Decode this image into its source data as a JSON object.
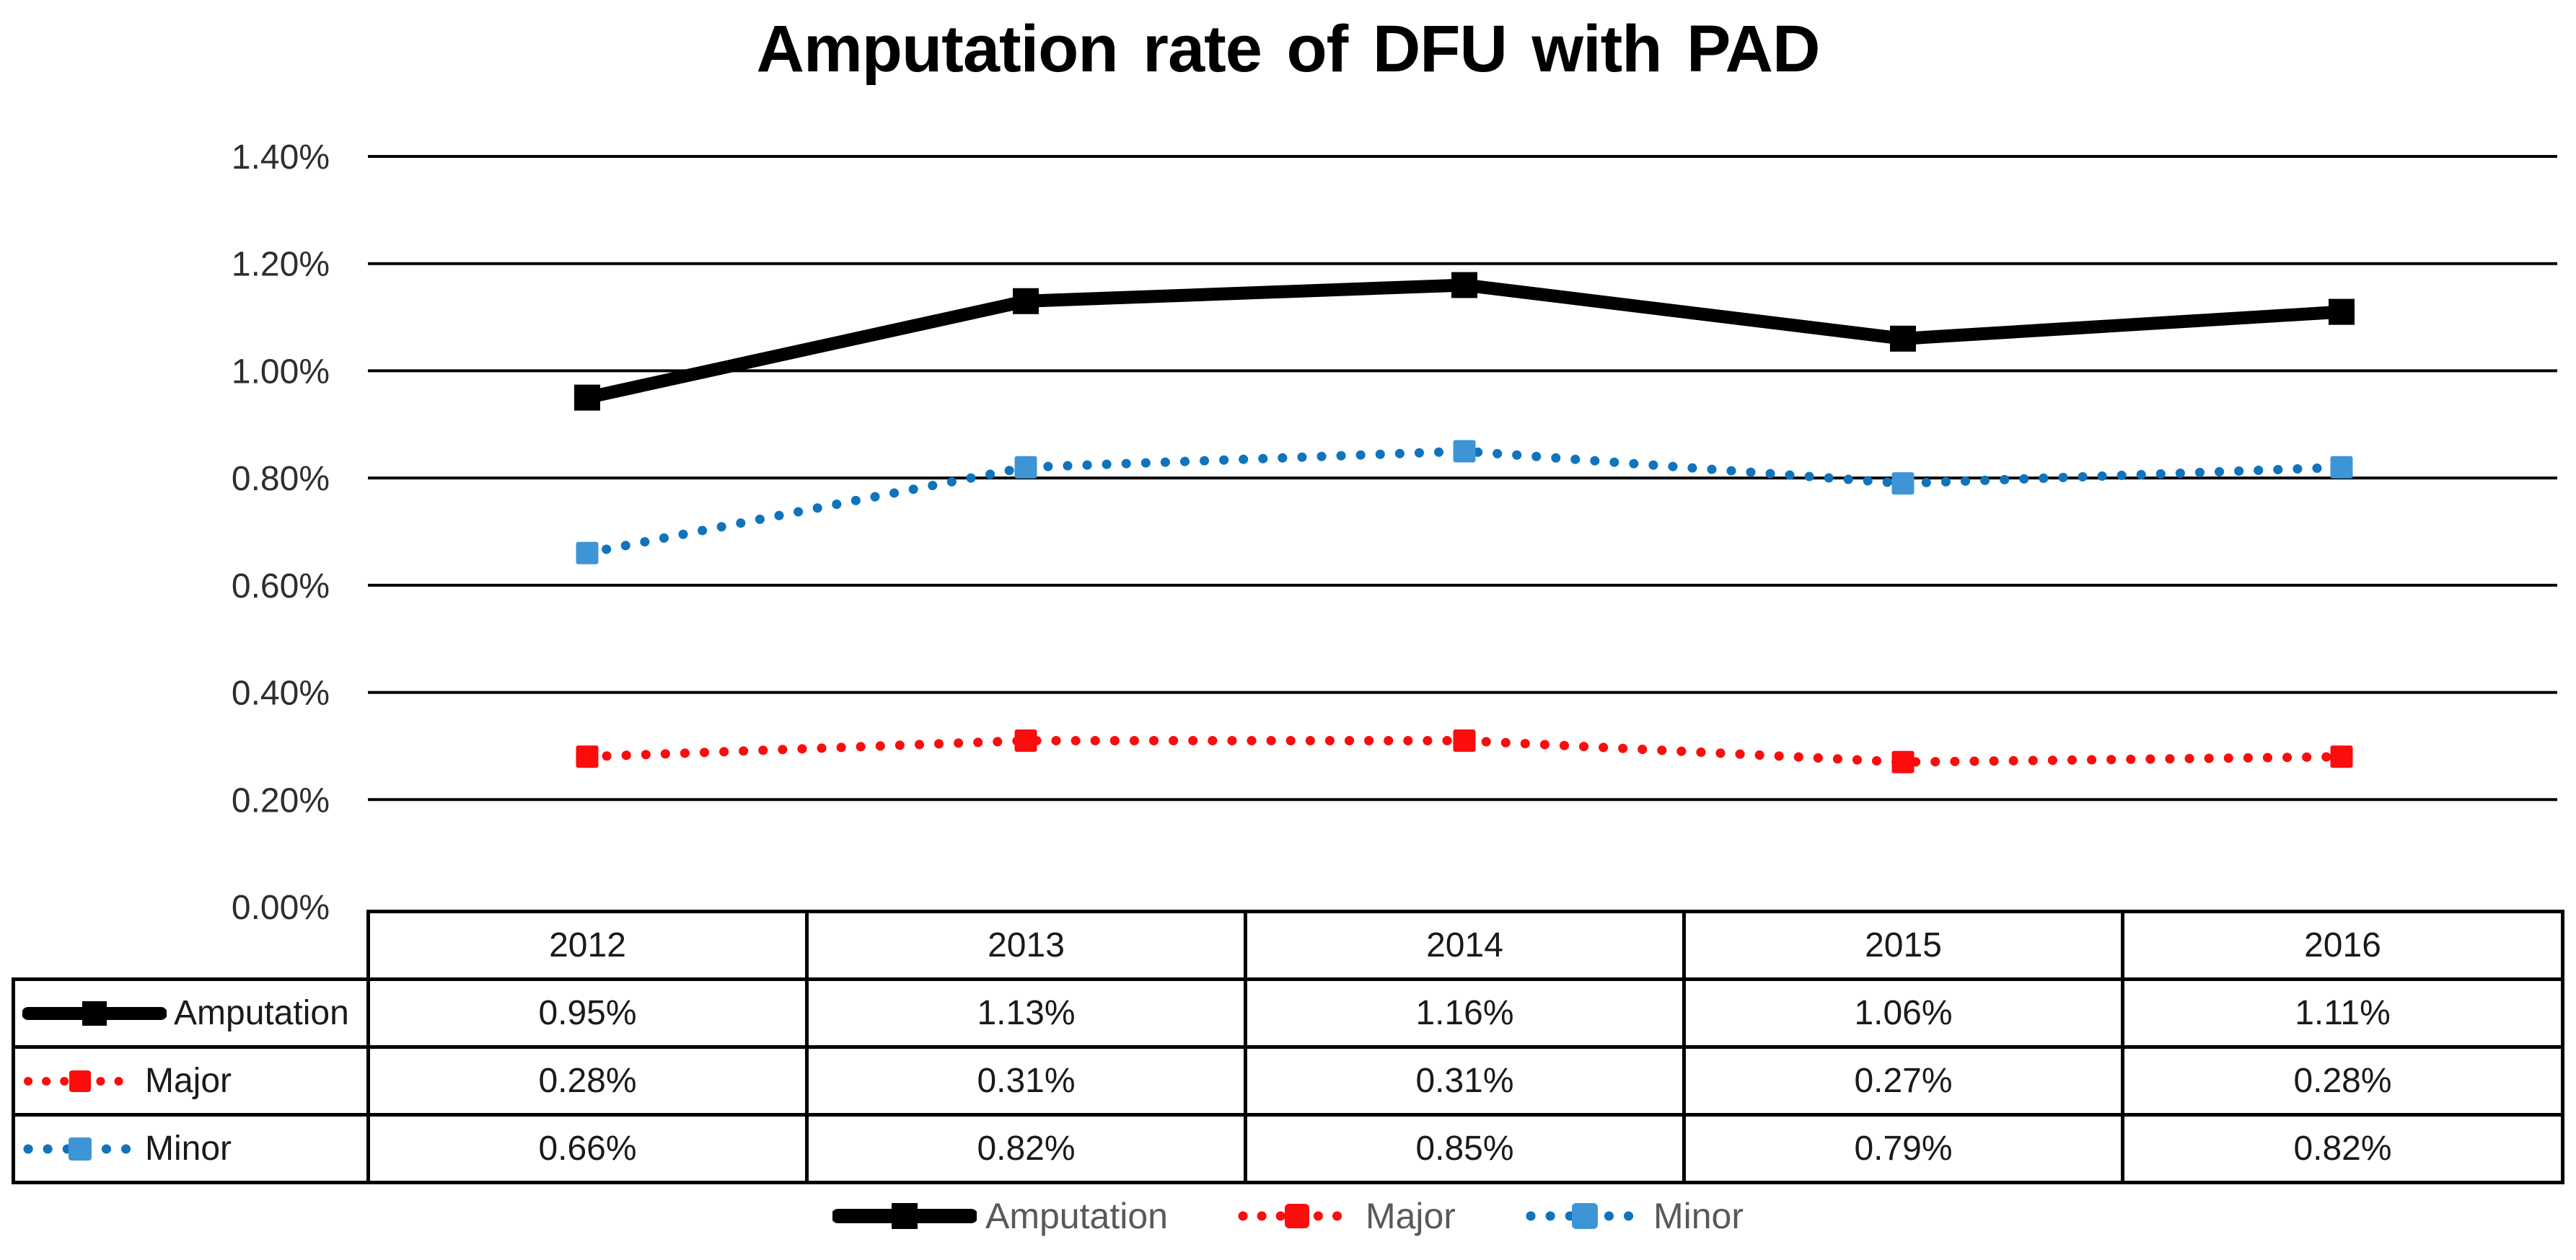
{
  "title": "Amputation rate of DFU with PAD",
  "chart_data": {
    "type": "line",
    "title": "Amputation rate of DFU with PAD",
    "categories": [
      "2012",
      "2013",
      "2014",
      "2015",
      "2016"
    ],
    "series": [
      {
        "name": "Amputation",
        "values": [
          0.95,
          1.13,
          1.16,
          1.06,
          1.11
        ],
        "color": "#000000",
        "marker_color": "#000000",
        "style": "solid",
        "marker": "square"
      },
      {
        "name": "Major",
        "values": [
          0.28,
          0.31,
          0.31,
          0.27,
          0.28
        ],
        "color": "#fb0d0d",
        "marker_color": "#fb0d0d",
        "style": "dotted",
        "marker": "square"
      },
      {
        "name": "Minor",
        "values": [
          0.66,
          0.82,
          0.85,
          0.79,
          0.82
        ],
        "color": "#0f74bc",
        "marker_color": "#3e95d5",
        "style": "dotted",
        "marker": "square"
      }
    ],
    "unit": "%",
    "ylim": [
      0,
      1.4
    ],
    "y_tick_step": 0.2,
    "y_tick_labels": [
      "0.00%",
      "0.20%",
      "0.40%",
      "0.60%",
      "0.80%",
      "1.00%",
      "1.20%",
      "1.40%"
    ],
    "grid": true,
    "legend_position": "bottom",
    "gridline_color": "#000000",
    "tick_label_color": "#2e2e2e"
  },
  "table": {
    "years": [
      "2012",
      "2013",
      "2014",
      "2015",
      "2016"
    ],
    "rows": [
      {
        "label": "Amputation",
        "values": [
          "0.95%",
          "1.13%",
          "1.16%",
          "1.06%",
          "1.11%"
        ]
      },
      {
        "label": "Major",
        "values": [
          "0.28%",
          "0.31%",
          "0.31%",
          "0.27%",
          "0.28%"
        ]
      },
      {
        "label": "Minor",
        "values": [
          "0.66%",
          "0.82%",
          "0.85%",
          "0.79%",
          "0.82%"
        ]
      }
    ]
  },
  "legend": {
    "text_color": "#595959"
  }
}
